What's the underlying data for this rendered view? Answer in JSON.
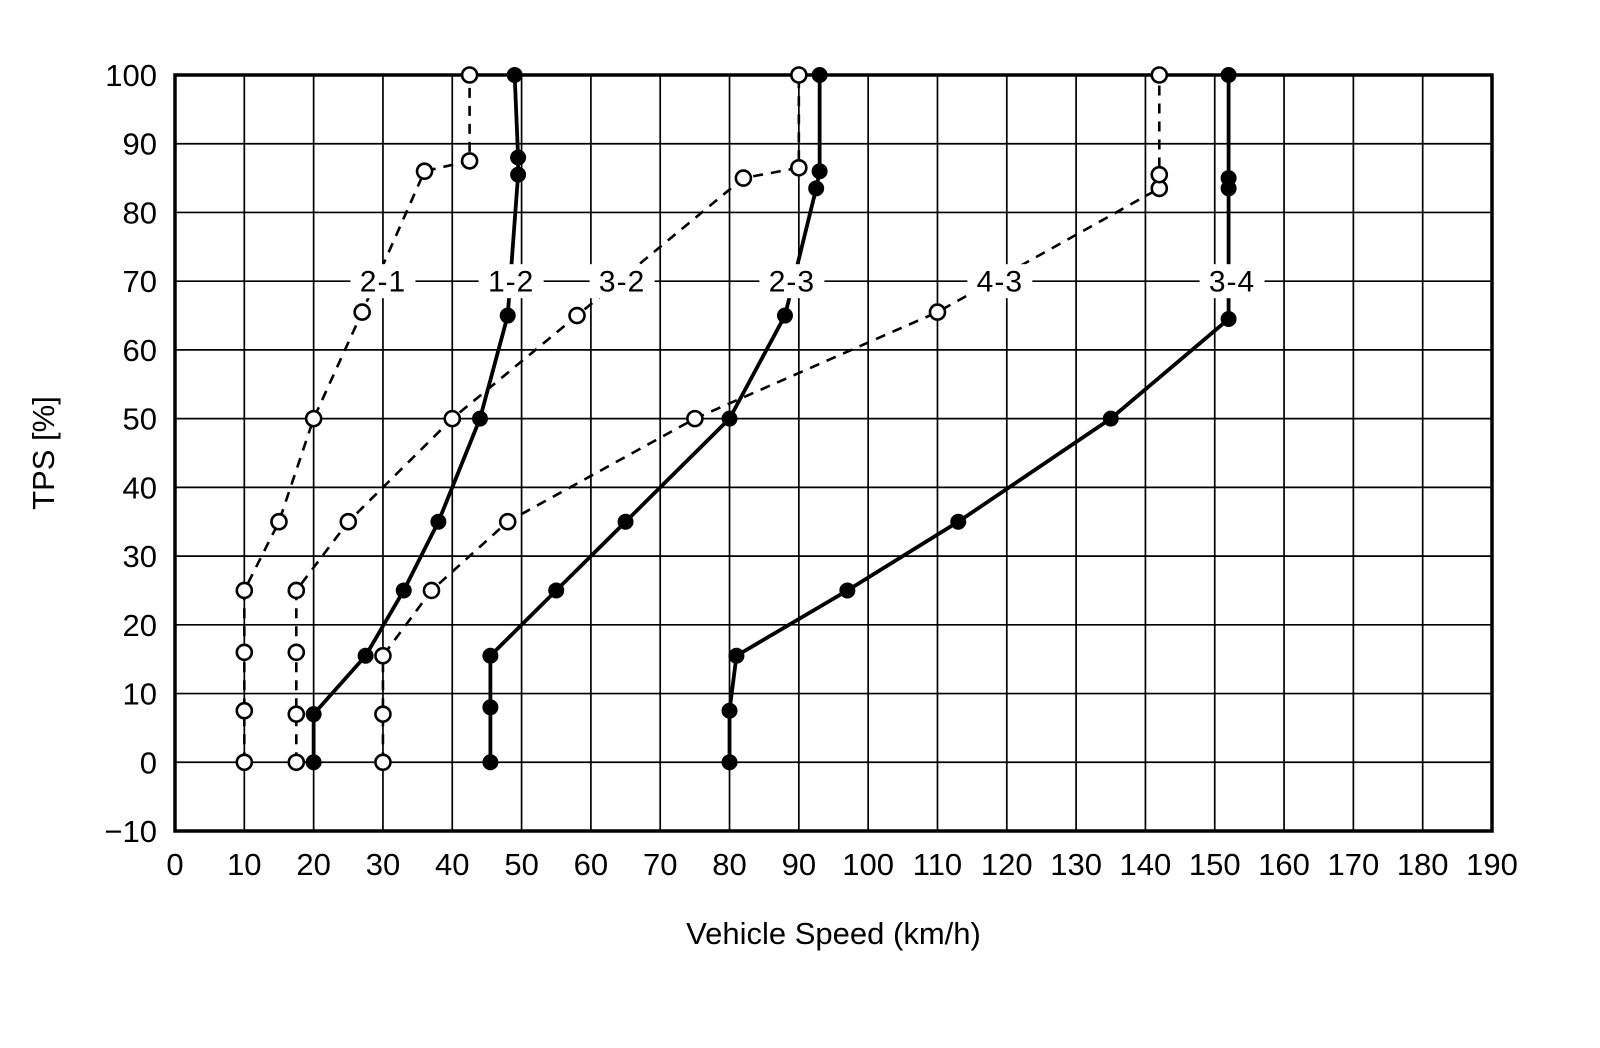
{
  "chart_data": {
    "type": "line",
    "xlabel": "Vehicle Speed (km/h)",
    "ylabel": "TPS [%]",
    "xlim": [
      0,
      190
    ],
    "ylim": [
      -10,
      100
    ],
    "xtick_step": 10,
    "ytick_step": 10,
    "grid": true,
    "legend_position": "inline-labels-on-curves",
    "series": [
      {
        "name": "2-1",
        "label": "2-1",
        "line_style": "dashed",
        "marker": "open",
        "label_pos": [
          30,
          70
        ],
        "points": [
          [
            10,
            0
          ],
          [
            10,
            7.5
          ],
          [
            10,
            16
          ],
          [
            10,
            25
          ],
          [
            15,
            35
          ],
          [
            20,
            50
          ],
          [
            27,
            65.5
          ],
          [
            36,
            86
          ],
          [
            42.5,
            87.5
          ],
          [
            42.5,
            100
          ]
        ]
      },
      {
        "name": "1-2",
        "label": "1-2",
        "line_style": "solid",
        "marker": "filled",
        "label_pos": [
          48.5,
          70
        ],
        "points": [
          [
            20,
            0
          ],
          [
            20,
            7
          ],
          [
            27.5,
            15.5
          ],
          [
            33,
            25
          ],
          [
            38,
            35
          ],
          [
            44,
            50
          ],
          [
            48,
            65
          ],
          [
            49.5,
            85.5
          ],
          [
            49.5,
            88
          ],
          [
            49,
            100
          ]
        ]
      },
      {
        "name": "3-2",
        "label": "3-2",
        "line_style": "dashed",
        "marker": "open",
        "label_pos": [
          64.5,
          70
        ],
        "points": [
          [
            17.5,
            0
          ],
          [
            17.5,
            7
          ],
          [
            17.5,
            16
          ],
          [
            17.5,
            25
          ],
          [
            25,
            35
          ],
          [
            40,
            50
          ],
          [
            58,
            65
          ],
          [
            82,
            85
          ],
          [
            90,
            86.5
          ],
          [
            90,
            100
          ]
        ]
      },
      {
        "name": "2-3",
        "label": "2-3",
        "line_style": "solid",
        "marker": "filled",
        "label_pos": [
          89,
          70
        ],
        "points": [
          [
            45.5,
            0
          ],
          [
            45.5,
            8
          ],
          [
            45.5,
            15.5
          ],
          [
            55,
            25
          ],
          [
            65,
            35
          ],
          [
            80,
            50
          ],
          [
            88,
            65
          ],
          [
            92.5,
            83.5
          ],
          [
            93,
            86
          ],
          [
            93,
            100
          ]
        ]
      },
      {
        "name": "4-3",
        "label": "4-3",
        "line_style": "dashed",
        "marker": "open",
        "label_pos": [
          119,
          70
        ],
        "points": [
          [
            30,
            0
          ],
          [
            30,
            7
          ],
          [
            30,
            15.5
          ],
          [
            37,
            25
          ],
          [
            48,
            35
          ],
          [
            75,
            50
          ],
          [
            110,
            65.5
          ],
          [
            142,
            83.5
          ],
          [
            142,
            85.5
          ],
          [
            142,
            100
          ]
        ]
      },
      {
        "name": "3-4",
        "label": "3-4",
        "line_style": "solid",
        "marker": "filled",
        "label_pos": [
          152.5,
          70
        ],
        "points": [
          [
            80,
            0
          ],
          [
            80,
            7.5
          ],
          [
            81,
            15.5
          ],
          [
            97,
            25
          ],
          [
            113,
            35
          ],
          [
            135,
            50
          ],
          [
            152,
            64.5
          ],
          [
            152,
            83.5
          ],
          [
            152,
            85
          ],
          [
            152,
            100
          ]
        ]
      }
    ]
  }
}
